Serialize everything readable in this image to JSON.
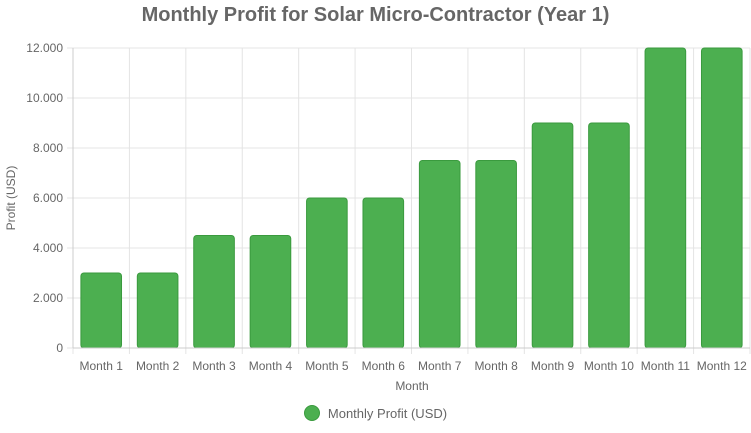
{
  "chart_data": {
    "type": "bar",
    "title": "Monthly Profit for Solar Micro-Contractor (Year 1)",
    "xlabel": "Month",
    "ylabel": "Profit (USD)",
    "categories": [
      "Month 1",
      "Month 2",
      "Month 3",
      "Month 4",
      "Month 5",
      "Month 6",
      "Month 7",
      "Month 8",
      "Month 9",
      "Month 10",
      "Month 11",
      "Month 12"
    ],
    "series": [
      {
        "name": "Monthly Profit (USD)",
        "values": [
          3000,
          3000,
          4500,
          4500,
          6000,
          6000,
          7500,
          7500,
          9000,
          9000,
          12000,
          12000
        ],
        "color": "#4caf50",
        "border_color": "#3a9a3e"
      }
    ],
    "ylim": [
      0,
      12000
    ],
    "yticks": [
      0,
      2000,
      4000,
      6000,
      8000,
      10000,
      12000
    ],
    "ytick_labels": [
      "0",
      "2.000",
      "4.000",
      "6.000",
      "8.000",
      "10.000",
      "12.000"
    ],
    "grid": true,
    "legend_position": "bottom"
  }
}
